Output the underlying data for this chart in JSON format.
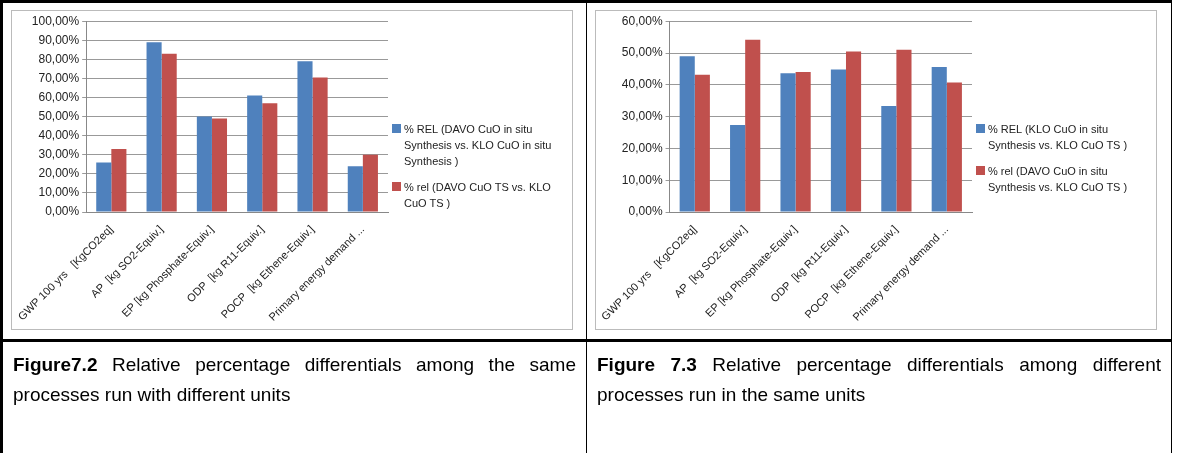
{
  "chart_data": [
    {
      "type": "bar",
      "categories": [
        "GWP 100 yrs   [KgCO2eq]",
        "AP  [kg SO2-Equiv.]",
        "EP [kg Phosphate-Equiv.]",
        "ODP  [kg R11-Equiv.]",
        "POCP  [kg Ethene-Equiv.]",
        "Primary energy demand ..."
      ],
      "series": [
        {
          "name": "% REL (DAVO CuO in situ Synthesis  vs.  KLO CuO in situ Synthesis )",
          "color": "#4f81bd",
          "values": [
            0.26,
            0.89,
            0.5,
            0.61,
            0.79,
            0.24
          ]
        },
        {
          "name": "% rel (DAVO CuO TS   vs. KLO CuO TS )",
          "color": "#c0504d",
          "values": [
            0.33,
            0.83,
            0.49,
            0.57,
            0.705,
            0.3
          ]
        }
      ],
      "ylim": [
        0,
        1
      ],
      "yticks": [
        {
          "value": 0,
          "label": "0,00%"
        },
        {
          "value": 0.1,
          "label": "10,00%"
        },
        {
          "value": 0.2,
          "label": "20,00%"
        },
        {
          "value": 0.3,
          "label": "30,00%"
        },
        {
          "value": 0.4,
          "label": "40,00%"
        },
        {
          "value": 0.5,
          "label": "50,00%"
        },
        {
          "value": 0.6,
          "label": "60,00%"
        },
        {
          "value": 0.7,
          "label": "70,00%"
        },
        {
          "value": 0.8,
          "label": "80,00%"
        },
        {
          "value": 0.9,
          "label": "90,00%"
        },
        {
          "value": 1,
          "label": "100,00%"
        }
      ],
      "grid": "y",
      "legend": "right",
      "annotations": [
        "Figure7.2",
        "Relative percentage differentials among the same processes run with different units"
      ]
    },
    {
      "type": "bar",
      "categories": [
        "GWP 100 yrs   [KgCO2eq]",
        "AP  [kg SO2-Equiv.]",
        "EP [kg Phosphate-Equiv.]",
        "ODP  [kg R11-Equiv.]",
        "POCP  [kg Ethene-Equiv.]",
        "Primary energy demand ..."
      ],
      "series": [
        {
          "name": "% REL (KLO CuO in situ Synthesis  vs.  KLO CuO TS )",
          "color": "#4f81bd",
          "values": [
            0.49,
            0.274,
            0.436,
            0.448,
            0.333,
            0.456
          ]
        },
        {
          "name": "% rel (DAVO CuO in situ Synthesis  vs.  KLO CuO TS )",
          "color": "#c0504d",
          "values": [
            0.432,
            0.542,
            0.44,
            0.505,
            0.51,
            0.407
          ]
        }
      ],
      "ylim": [
        0,
        0.6
      ],
      "yticks": [
        {
          "value": 0,
          "label": "0,00%"
        },
        {
          "value": 0.1,
          "label": "10,00%"
        },
        {
          "value": 0.2,
          "label": "20,00%"
        },
        {
          "value": 0.3,
          "label": "30,00%"
        },
        {
          "value": 0.4,
          "label": "40,00%"
        },
        {
          "value": 0.5,
          "label": "50,00%"
        },
        {
          "value": 0.6,
          "label": "60,00%"
        }
      ],
      "grid": "y",
      "legend": "right",
      "annotations": [
        "Figure 7.3",
        "Relative percentage differentials among different processes run in the same units"
      ]
    }
  ]
}
